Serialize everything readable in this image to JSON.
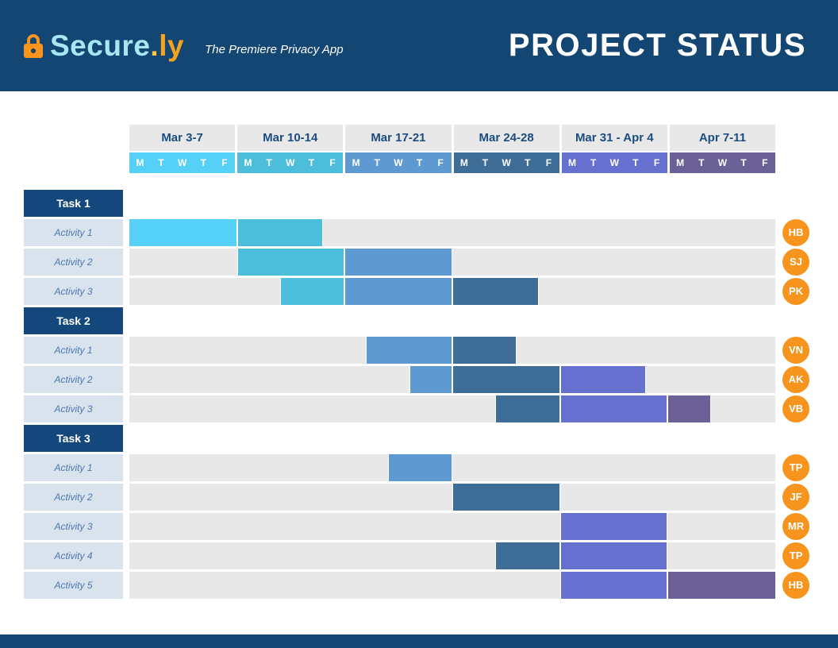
{
  "header": {
    "brand_primary": "Secure",
    "brand_dot": ".",
    "brand_suffix": "ly",
    "tagline": "The Premiere Privacy App",
    "title": "PROJECT STATUS",
    "lock_icon_color": "#F7941D"
  },
  "colors": {
    "header_bg": "#134673",
    "task_label_bg": "#14487C",
    "track_bg": "#E8E8E9",
    "week_header_bg": "#E8E8E8",
    "activity_label_bg": "#D9E3EE",
    "activity_label_text": "#4A77AD",
    "week_header_text": "#1C4D80",
    "avatar_bg": "#F7941D"
  },
  "chart_data": {
    "type": "gantt",
    "title": "PROJECT STATUS",
    "day_labels": [
      "M",
      "T",
      "W",
      "T",
      "F"
    ],
    "days_per_week": 5,
    "total_days": 30,
    "weeks": [
      {
        "label": "Mar 3-7",
        "color": "#55D1F8"
      },
      {
        "label": "Mar 10-14",
        "color": "#4CBEDC"
      },
      {
        "label": "Mar 17-21",
        "color": "#5E9AD1"
      },
      {
        "label": "Mar 24-28",
        "color": "#3E6D97"
      },
      {
        "label": "Mar 31 - Apr 4",
        "color": "#6670CF"
      },
      {
        "label": "Apr 7-11",
        "color": "#6B6196"
      }
    ],
    "tasks": [
      {
        "label": "Task 1",
        "activities": [
          {
            "label": "Activity 1",
            "assignee": "HB",
            "segments": [
              {
                "start": 0,
                "end": 5,
                "week": 1
              },
              {
                "start": 5,
                "end": 9,
                "week": 2
              }
            ]
          },
          {
            "label": "Activity 2",
            "assignee": "SJ",
            "segments": [
              {
                "start": 5,
                "end": 10,
                "week": 2
              },
              {
                "start": 10,
                "end": 15,
                "week": 3
              }
            ]
          },
          {
            "label": "Activity 3",
            "assignee": "PK",
            "segments": [
              {
                "start": 7,
                "end": 10,
                "week": 2
              },
              {
                "start": 10,
                "end": 15,
                "week": 3
              },
              {
                "start": 15,
                "end": 19,
                "week": 4
              }
            ]
          }
        ]
      },
      {
        "label": "Task 2",
        "activities": [
          {
            "label": "Activity 1",
            "assignee": "VN",
            "segments": [
              {
                "start": 11,
                "end": 15,
                "week": 3
              },
              {
                "start": 15,
                "end": 18,
                "week": 4
              }
            ]
          },
          {
            "label": "Activity 2",
            "assignee": "AK",
            "segments": [
              {
                "start": 13,
                "end": 15,
                "week": 3
              },
              {
                "start": 15,
                "end": 20,
                "week": 4
              },
              {
                "start": 20,
                "end": 24,
                "week": 5
              }
            ]
          },
          {
            "label": "Activity 3",
            "assignee": "VB",
            "segments": [
              {
                "start": 17,
                "end": 20,
                "week": 4
              },
              {
                "start": 20,
                "end": 25,
                "week": 5
              },
              {
                "start": 25,
                "end": 27,
                "week": 6
              }
            ]
          }
        ]
      },
      {
        "label": "Task 3",
        "activities": [
          {
            "label": "Activity 1",
            "assignee": "TP",
            "segments": [
              {
                "start": 12,
                "end": 15,
                "week": 3
              }
            ]
          },
          {
            "label": "Activity 2",
            "assignee": "JF",
            "segments": [
              {
                "start": 15,
                "end": 20,
                "week": 4
              }
            ]
          },
          {
            "label": "Activity 3",
            "assignee": "MR",
            "segments": [
              {
                "start": 20,
                "end": 25,
                "week": 5
              }
            ]
          },
          {
            "label": "Activity 4",
            "assignee": "TP",
            "segments": [
              {
                "start": 17,
                "end": 20,
                "week": 4
              },
              {
                "start": 20,
                "end": 25,
                "week": 5
              }
            ]
          },
          {
            "label": "Activity 5",
            "assignee": "HB",
            "segments": [
              {
                "start": 20,
                "end": 25,
                "week": 5
              },
              {
                "start": 25,
                "end": 30,
                "week": 6
              }
            ]
          }
        ]
      }
    ]
  }
}
